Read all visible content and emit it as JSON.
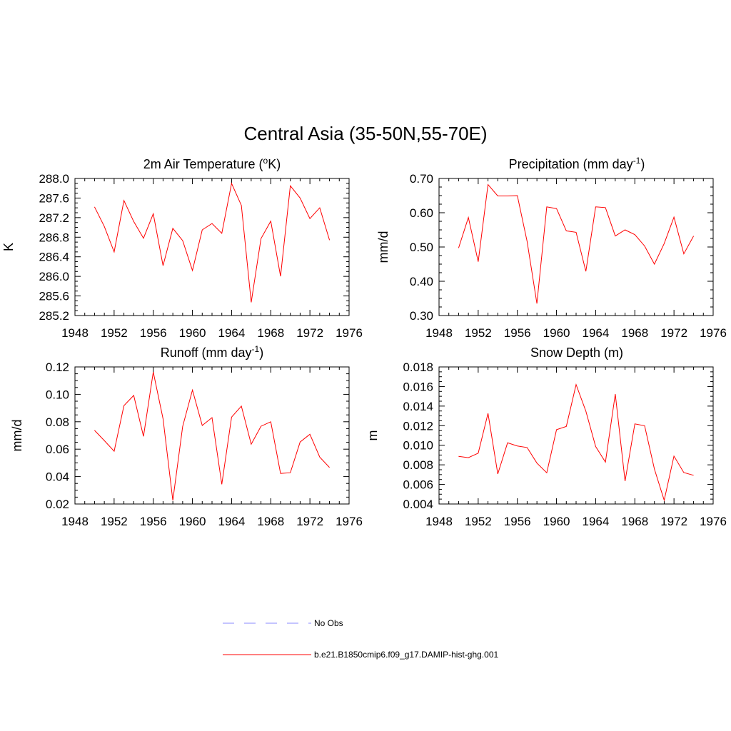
{
  "figure_title": "Central Asia (35-50N,55-70E)",
  "chart_data": [
    {
      "type": "line",
      "title": "2m Air Temperature (°K)",
      "ylabel": "K",
      "xlim": [
        1948,
        1976
      ],
      "ylim": [
        285.2,
        288.0
      ],
      "xticks": [
        "1948",
        "1952",
        "1956",
        "1960",
        "1964",
        "1968",
        "1972",
        "1976"
      ],
      "yticks": [
        "285.2",
        "285.6",
        "286.0",
        "286.4",
        "286.8",
        "287.2",
        "287.6",
        "288.0"
      ],
      "series": [
        {
          "name": "b.e21.B1850cmip6.f09_g17.DAMIP-hist-ghg.001",
          "color": "#ff0000",
          "x": [
            1950,
            1951,
            1952,
            1953,
            1954,
            1955,
            1956,
            1957,
            1958,
            1959,
            1960,
            1961,
            1962,
            1963,
            1964,
            1965,
            1966,
            1967,
            1968,
            1969,
            1970,
            1971,
            1972,
            1973,
            1974
          ],
          "y": [
            287.42,
            287.02,
            286.5,
            287.55,
            287.12,
            286.78,
            287.28,
            286.22,
            286.98,
            286.73,
            286.12,
            286.95,
            287.08,
            286.88,
            287.9,
            287.45,
            285.47,
            286.77,
            287.13,
            286.0,
            287.85,
            287.6,
            287.18,
            287.4,
            286.74
          ]
        }
      ]
    },
    {
      "type": "line",
      "title": "Precipitation (mm day-1)",
      "ylabel": "mm/d",
      "xlim": [
        1948,
        1976
      ],
      "ylim": [
        0.3,
        0.7
      ],
      "xticks": [
        "1948",
        "1952",
        "1956",
        "1960",
        "1964",
        "1968",
        "1972",
        "1976"
      ],
      "yticks": [
        "0.30",
        "0.40",
        "0.50",
        "0.60",
        "0.70"
      ],
      "series": [
        {
          "name": "b.e21.B1850cmip6.f09_g17.DAMIP-hist-ghg.001",
          "color": "#ff0000",
          "x": [
            1950,
            1951,
            1952,
            1953,
            1954,
            1955,
            1956,
            1957,
            1958,
            1959,
            1960,
            1961,
            1962,
            1963,
            1964,
            1965,
            1966,
            1967,
            1968,
            1969,
            1970,
            1971,
            1972,
            1973,
            1974
          ],
          "y": [
            0.497,
            0.586,
            0.457,
            0.682,
            0.649,
            0.649,
            0.65,
            0.516,
            0.335,
            0.617,
            0.612,
            0.547,
            0.543,
            0.429,
            0.617,
            0.615,
            0.532,
            0.55,
            0.536,
            0.503,
            0.45,
            0.51,
            0.587,
            0.48,
            0.532
          ]
        }
      ]
    },
    {
      "type": "line",
      "title": "Runoff (mm day-1)",
      "ylabel": "mm/d",
      "xlim": [
        1948,
        1976
      ],
      "ylim": [
        0.02,
        0.12
      ],
      "xticks": [
        "1948",
        "1952",
        "1956",
        "1960",
        "1964",
        "1968",
        "1972",
        "1976"
      ],
      "yticks": [
        "0.02",
        "0.04",
        "0.06",
        "0.08",
        "0.10",
        "0.12"
      ],
      "series": [
        {
          "name": "b.e21.B1850cmip6.f09_g17.DAMIP-hist-ghg.001",
          "color": "#ff0000",
          "x": [
            1950,
            1951,
            1952,
            1953,
            1954,
            1955,
            1956,
            1957,
            1958,
            1959,
            1960,
            1961,
            1962,
            1963,
            1964,
            1965,
            1966,
            1967,
            1968,
            1969,
            1970,
            1971,
            1972,
            1973,
            1974
          ],
          "y": [
            0.0737,
            0.0663,
            0.0585,
            0.0917,
            0.0992,
            0.0693,
            0.1163,
            0.0822,
            0.0226,
            0.0766,
            0.1031,
            0.0773,
            0.083,
            0.0344,
            0.0834,
            0.0914,
            0.0636,
            0.0767,
            0.08,
            0.0423,
            0.0428,
            0.0652,
            0.0709,
            0.0542,
            0.0466
          ]
        }
      ]
    },
    {
      "type": "line",
      "title": "Snow Depth (m)",
      "ylabel": "m",
      "xlim": [
        1948,
        1976
      ],
      "ylim": [
        0.004,
        0.018
      ],
      "xticks": [
        "1948",
        "1952",
        "1956",
        "1960",
        "1964",
        "1968",
        "1972",
        "1976"
      ],
      "yticks": [
        "0.004",
        "0.006",
        "0.008",
        "0.010",
        "0.012",
        "0.014",
        "0.016",
        "0.018"
      ],
      "series": [
        {
          "name": "b.e21.B1850cmip6.f09_g17.DAMIP-hist-ghg.001",
          "color": "#ff0000",
          "x": [
            1950,
            1951,
            1952,
            1953,
            1954,
            1955,
            1956,
            1957,
            1958,
            1959,
            1960,
            1961,
            1962,
            1963,
            1964,
            1965,
            1966,
            1967,
            1968,
            1969,
            1970,
            1971,
            1972,
            1973,
            1974
          ],
          "y": [
            0.00887,
            0.00873,
            0.00919,
            0.01326,
            0.00707,
            0.01025,
            0.00993,
            0.00977,
            0.00818,
            0.00719,
            0.01159,
            0.01192,
            0.0162,
            0.01348,
            0.00987,
            0.00828,
            0.01522,
            0.00634,
            0.01218,
            0.01199,
            0.00757,
            0.00438,
            0.00889,
            0.00721,
            0.00693
          ]
        }
      ]
    }
  ],
  "legend": [
    {
      "label": "No Obs",
      "color": "#a0a0ff",
      "style": "dashed"
    },
    {
      "label": "b.e21.B1850cmip6.f09_g17.DAMIP-hist-ghg.001",
      "color": "#ff0000",
      "style": "solid"
    }
  ]
}
